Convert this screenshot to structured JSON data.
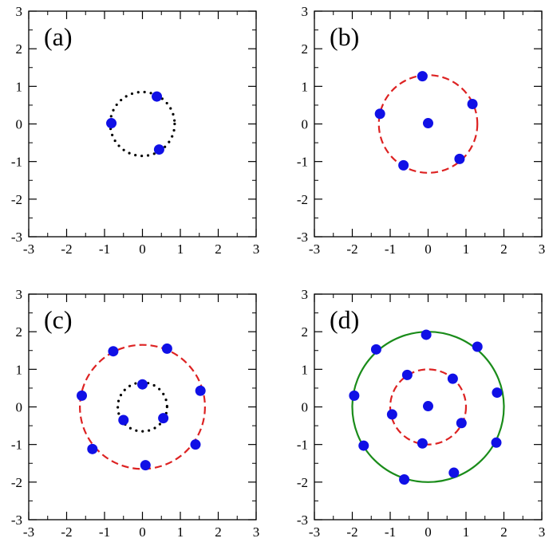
{
  "chart_data": [
    {
      "type": "scatter",
      "panel_label": "(a)",
      "xlim": [
        -3,
        3
      ],
      "ylim": [
        -3,
        3
      ],
      "x_ticks": [
        -3,
        -2,
        -1,
        0,
        1,
        2,
        3
      ],
      "y_ticks": [
        -3,
        -2,
        -1,
        0,
        1,
        2,
        3
      ],
      "grid": false,
      "circles": [
        {
          "radius": 0.85,
          "style": "dotted",
          "color": "#000000"
        }
      ],
      "points": [
        {
          "x": 0.38,
          "y": 0.73
        },
        {
          "x": -0.82,
          "y": 0.02
        },
        {
          "x": 0.44,
          "y": -0.68
        }
      ]
    },
    {
      "type": "scatter",
      "panel_label": "(b)",
      "xlim": [
        -3,
        3
      ],
      "ylim": [
        -3,
        3
      ],
      "x_ticks": [
        -3,
        -2,
        -1,
        0,
        1,
        2,
        3
      ],
      "y_ticks": [
        -3,
        -2,
        -1,
        0,
        1,
        2,
        3
      ],
      "grid": false,
      "circles": [
        {
          "radius": 1.3,
          "style": "dashed",
          "color": "#dd2222"
        }
      ],
      "points": [
        {
          "x": -0.15,
          "y": 1.27
        },
        {
          "x": 1.17,
          "y": 0.53
        },
        {
          "x": -1.27,
          "y": 0.27
        },
        {
          "x": 0.0,
          "y": 0.02
        },
        {
          "x": 0.83,
          "y": -0.93
        },
        {
          "x": -0.65,
          "y": -1.1
        }
      ]
    },
    {
      "type": "scatter",
      "panel_label": "(c)",
      "xlim": [
        -3,
        3
      ],
      "ylim": [
        -3,
        3
      ],
      "x_ticks": [
        -3,
        -2,
        -1,
        0,
        1,
        2,
        3
      ],
      "y_ticks": [
        -3,
        -2,
        -1,
        0,
        1,
        2,
        3
      ],
      "grid": false,
      "circles": [
        {
          "radius": 0.65,
          "style": "dotted",
          "color": "#000000"
        },
        {
          "radius": 1.65,
          "style": "dashed",
          "color": "#dd2222"
        }
      ],
      "points": [
        {
          "x": -0.77,
          "y": 1.48
        },
        {
          "x": 0.65,
          "y": 1.55
        },
        {
          "x": -1.6,
          "y": 0.3
        },
        {
          "x": 1.53,
          "y": 0.43
        },
        {
          "x": 0.0,
          "y": 0.6
        },
        {
          "x": -0.5,
          "y": -0.35
        },
        {
          "x": 0.55,
          "y": -0.3
        },
        {
          "x": -1.32,
          "y": -1.12
        },
        {
          "x": 1.4,
          "y": -1.0
        },
        {
          "x": 0.08,
          "y": -1.55
        }
      ]
    },
    {
      "type": "scatter",
      "panel_label": "(d)",
      "xlim": [
        -3,
        3
      ],
      "ylim": [
        -3,
        3
      ],
      "x_ticks": [
        -3,
        -2,
        -1,
        0,
        1,
        2,
        3
      ],
      "y_ticks": [
        -3,
        -2,
        -1,
        0,
        1,
        2,
        3
      ],
      "grid": false,
      "circles": [
        {
          "radius": 1.0,
          "style": "dashed",
          "color": "#dd2222"
        },
        {
          "radius": 2.0,
          "style": "solid",
          "color": "#1a8c1a"
        }
      ],
      "points": [
        {
          "x": -0.05,
          "y": 1.92
        },
        {
          "x": -1.37,
          "y": 1.53
        },
        {
          "x": 1.3,
          "y": 1.6
        },
        {
          "x": -0.55,
          "y": 0.85
        },
        {
          "x": 0.65,
          "y": 0.75
        },
        {
          "x": -1.95,
          "y": 0.3
        },
        {
          "x": 1.82,
          "y": 0.38
        },
        {
          "x": 0.0,
          "y": 0.02
        },
        {
          "x": -0.95,
          "y": -0.2
        },
        {
          "x": 0.88,
          "y": -0.43
        },
        {
          "x": -1.7,
          "y": -1.03
        },
        {
          "x": -0.15,
          "y": -0.97
        },
        {
          "x": 1.8,
          "y": -0.95
        },
        {
          "x": 0.68,
          "y": -1.75
        },
        {
          "x": -0.63,
          "y": -1.93
        }
      ]
    }
  ],
  "colors": {
    "point": "#1010e6",
    "axis": "#000000",
    "background": "#ffffff"
  }
}
